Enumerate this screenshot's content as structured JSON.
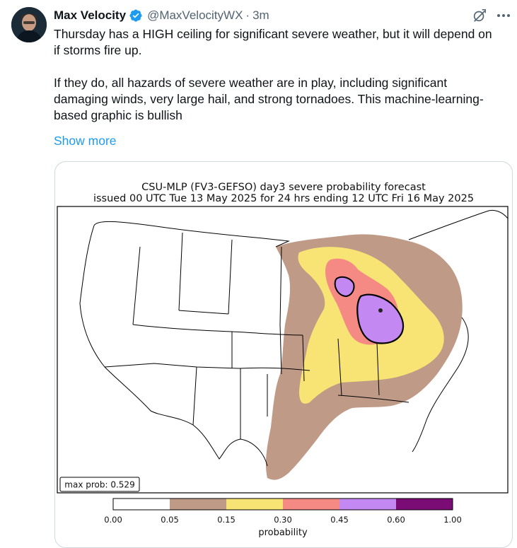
{
  "tweet": {
    "display_name": "Max Velocity",
    "handle": "@MaxVelocityWX",
    "separator": "·",
    "time_ago": "3m",
    "paragraphs": [
      "Thursday has a HIGH ceiling for significant severe weather, but it will depend on if storms fire up.",
      "If they do, all hazards of severe weather are in play, including significant damaging winds, very large hail, and strong tornadoes. This machine-learning-based graphic is bullish"
    ],
    "show_more_label": "Show more"
  },
  "icons": {
    "avatar": "profile-avatar",
    "verified": "verified-badge-icon",
    "grok": "grok-icon",
    "more": "more-options-icon"
  },
  "colors": {
    "link_blue": "#1d9bf0",
    "verified_blue": "#1d9bf0",
    "muted_text": "#536471",
    "prob_0_05": "#ffffff",
    "prob_05_15": "#bf9b87",
    "prob_15_30": "#f7e474",
    "prob_30_45": "#f58a85",
    "prob_45_60": "#c388f1",
    "prob_60_100": "#7b0b75"
  },
  "map": {
    "title_line1": "CSU-MLP (FV3-GEFSO) day3 severe probability forecast",
    "title_line2": "issued 00 UTC Tue 13 May 2025 for 24 hrs ending 12 UTC Fri 16 May 2025",
    "max_prob_label": "max prob: 0.529",
    "colorbar_ticks": [
      "0.00",
      "0.05",
      "0.15",
      "0.30",
      "0.45",
      "0.60",
      "1.00"
    ],
    "colorbar_label": "probability"
  }
}
